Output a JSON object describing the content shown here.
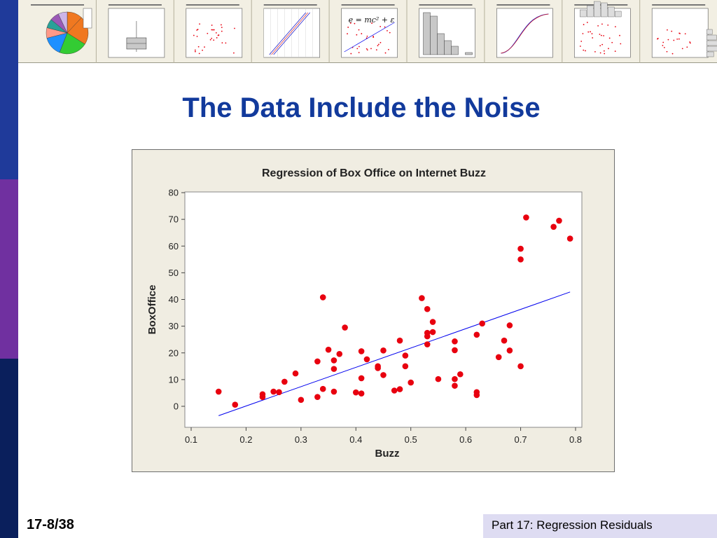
{
  "slide": {
    "title": "The Data Include the Noise",
    "page_number": "17-8/38",
    "footer": "Part 17: Regression Residuals"
  },
  "colors": {
    "title": "#123a9c",
    "bar_top": "#1f3a9a",
    "bar_mid": "#7030a0",
    "bar_bottom": "#0a1f5c",
    "points": "#e8000f",
    "fit_line": "#0000ee",
    "chart_bg": "#f0ede2",
    "footer_bg": "#dedcf2"
  },
  "thumbnails": {
    "count": 9,
    "kinds": [
      "pie",
      "boxplot",
      "scatter",
      "probability-plot",
      "scatter-equation",
      "histogram",
      "cdf",
      "marginal-plot"
    ],
    "equation": "e = mc² + ε"
  },
  "chart_data": {
    "type": "scatter",
    "title": "Regression of Box Office on Internet Buzz",
    "xlabel": "Buzz",
    "ylabel": "BoxOffice",
    "xlim": [
      0.1,
      0.8
    ],
    "ylim": [
      0,
      80
    ],
    "xticks": [
      "0.1",
      "0.2",
      "0.3",
      "0.4",
      "0.5",
      "0.6",
      "0.7",
      "0.8"
    ],
    "yticks": [
      "0",
      "10",
      "20",
      "30",
      "40",
      "50",
      "60",
      "70",
      "80"
    ],
    "grid": false,
    "legend": "none",
    "fit_line": {
      "x": [
        0.15,
        0.79
      ],
      "y": [
        -3.5,
        42.8
      ]
    },
    "points": [
      {
        "x": 0.15,
        "y": 5.5
      },
      {
        "x": 0.18,
        "y": 0.6
      },
      {
        "x": 0.23,
        "y": 4.5
      },
      {
        "x": 0.23,
        "y": 3.5
      },
      {
        "x": 0.25,
        "y": 5.5
      },
      {
        "x": 0.26,
        "y": 5.3
      },
      {
        "x": 0.27,
        "y": 9.2
      },
      {
        "x": 0.29,
        "y": 12.3
      },
      {
        "x": 0.3,
        "y": 2.4
      },
      {
        "x": 0.33,
        "y": 16.8
      },
      {
        "x": 0.33,
        "y": 3.5
      },
      {
        "x": 0.34,
        "y": 6.5
      },
      {
        "x": 0.34,
        "y": 40.8
      },
      {
        "x": 0.35,
        "y": 21.2
      },
      {
        "x": 0.36,
        "y": 17.2
      },
      {
        "x": 0.36,
        "y": 14.0
      },
      {
        "x": 0.36,
        "y": 5.5
      },
      {
        "x": 0.37,
        "y": 19.6
      },
      {
        "x": 0.38,
        "y": 29.5
      },
      {
        "x": 0.4,
        "y": 5.2
      },
      {
        "x": 0.41,
        "y": 20.6
      },
      {
        "x": 0.41,
        "y": 10.5
      },
      {
        "x": 0.41,
        "y": 4.8
      },
      {
        "x": 0.42,
        "y": 17.6
      },
      {
        "x": 0.44,
        "y": 15.0
      },
      {
        "x": 0.44,
        "y": 14.3
      },
      {
        "x": 0.45,
        "y": 20.9
      },
      {
        "x": 0.45,
        "y": 11.7
      },
      {
        "x": 0.47,
        "y": 5.9
      },
      {
        "x": 0.48,
        "y": 6.4
      },
      {
        "x": 0.48,
        "y": 24.6
      },
      {
        "x": 0.49,
        "y": 19.0
      },
      {
        "x": 0.49,
        "y": 15.0
      },
      {
        "x": 0.5,
        "y": 8.9
      },
      {
        "x": 0.52,
        "y": 40.5
      },
      {
        "x": 0.53,
        "y": 36.4
      },
      {
        "x": 0.53,
        "y": 27.5
      },
      {
        "x": 0.53,
        "y": 26.2
      },
      {
        "x": 0.53,
        "y": 23.2
      },
      {
        "x": 0.54,
        "y": 31.6
      },
      {
        "x": 0.54,
        "y": 27.8
      },
      {
        "x": 0.55,
        "y": 10.2
      },
      {
        "x": 0.58,
        "y": 24.3
      },
      {
        "x": 0.58,
        "y": 21.0
      },
      {
        "x": 0.58,
        "y": 10.2
      },
      {
        "x": 0.58,
        "y": 7.7
      },
      {
        "x": 0.59,
        "y": 12.0
      },
      {
        "x": 0.62,
        "y": 26.8
      },
      {
        "x": 0.62,
        "y": 5.3
      },
      {
        "x": 0.62,
        "y": 4.2
      },
      {
        "x": 0.63,
        "y": 31.0
      },
      {
        "x": 0.66,
        "y": 18.4
      },
      {
        "x": 0.67,
        "y": 24.6
      },
      {
        "x": 0.68,
        "y": 30.3
      },
      {
        "x": 0.68,
        "y": 20.9
      },
      {
        "x": 0.7,
        "y": 59.0
      },
      {
        "x": 0.7,
        "y": 55.0
      },
      {
        "x": 0.7,
        "y": 15.0
      },
      {
        "x": 0.71,
        "y": 70.7
      },
      {
        "x": 0.76,
        "y": 67.2
      },
      {
        "x": 0.77,
        "y": 69.5
      },
      {
        "x": 0.79,
        "y": 62.8
      }
    ]
  }
}
